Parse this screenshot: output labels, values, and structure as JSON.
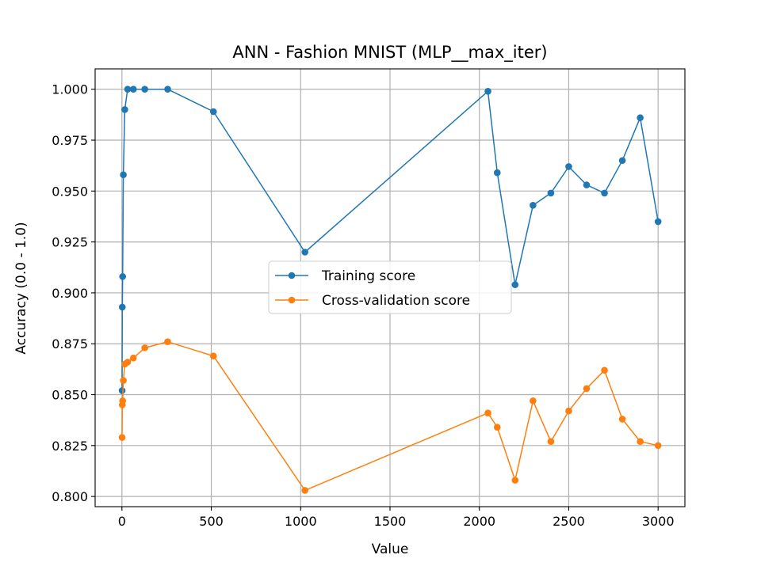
{
  "chart_data": {
    "type": "line",
    "title": "ANN - Fashion MNIST (MLP__max_iter)",
    "xlabel": "Value",
    "ylabel": "Accuracy (0.0 - 1.0)",
    "xlim": [
      -150,
      3150
    ],
    "ylim": [
      0.795,
      1.01
    ],
    "grid": true,
    "legend_position": "center-right",
    "x_ticks": [
      0,
      500,
      1000,
      1500,
      2000,
      2500,
      3000
    ],
    "x_tick_labels": [
      "0",
      "500",
      "1000",
      "1500",
      "2000",
      "2500",
      "3000"
    ],
    "y_ticks": [
      0.8,
      0.825,
      0.85,
      0.875,
      0.9,
      0.925,
      0.95,
      0.975,
      1.0
    ],
    "y_tick_labels": [
      "0.800",
      "0.825",
      "0.850",
      "0.875",
      "0.900",
      "0.925",
      "0.950",
      "0.975",
      "1.000"
    ],
    "x": [
      1,
      2,
      4,
      8,
      16,
      32,
      64,
      128,
      256,
      512,
      1024,
      2048,
      2100,
      2200,
      2300,
      2400,
      2500,
      2600,
      2700,
      2800,
      2900,
      3000
    ],
    "series": [
      {
        "name": "Training score",
        "color": "#1f77b4",
        "values": [
          0.852,
          0.893,
          0.908,
          0.958,
          0.99,
          1.0,
          1.0,
          1.0,
          1.0,
          0.989,
          0.92,
          0.999,
          0.959,
          0.904,
          0.943,
          0.949,
          0.962,
          0.953,
          0.949,
          0.965,
          0.986,
          0.935
        ]
      },
      {
        "name": "Cross-validation score",
        "color": "#ff7f0e",
        "values": [
          0.829,
          0.845,
          0.847,
          0.857,
          0.865,
          0.866,
          0.868,
          0.873,
          0.876,
          0.869,
          0.803,
          0.841,
          0.834,
          0.808,
          0.847,
          0.827,
          0.842,
          0.853,
          0.862,
          0.838,
          0.827,
          0.825
        ]
      }
    ]
  }
}
